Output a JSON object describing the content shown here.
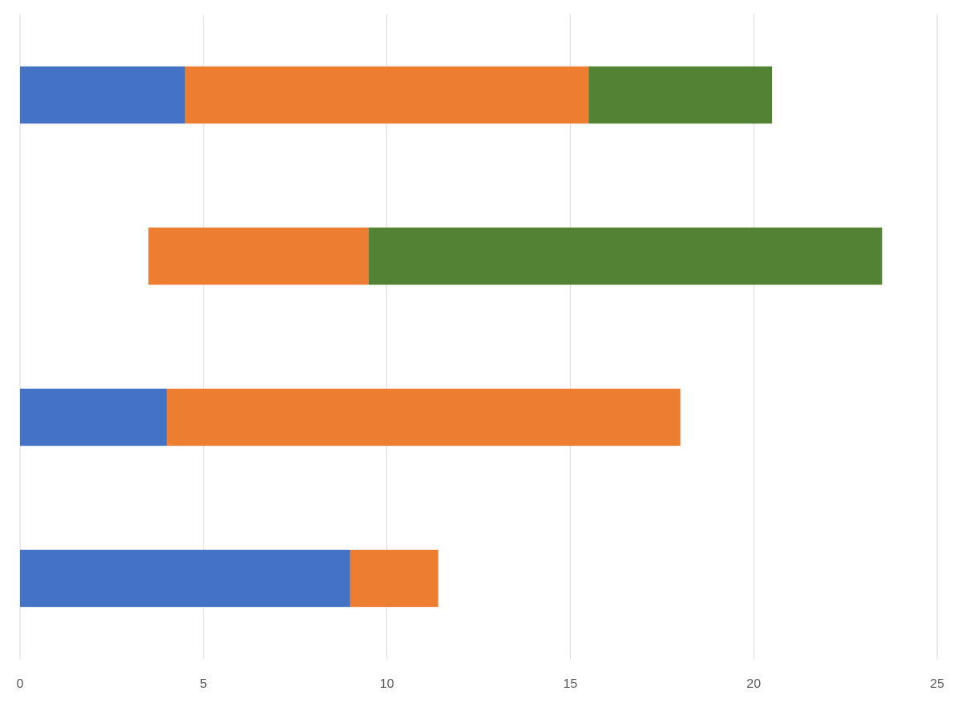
{
  "chart_data": {
    "type": "bar",
    "orientation": "horizontal",
    "stacked": true,
    "title": "",
    "xlabel": "",
    "ylabel": "",
    "xlim": [
      0,
      25
    ],
    "x_ticks": [
      "0",
      "5",
      "10",
      "15",
      "20",
      "25"
    ],
    "grid": "vertical",
    "legend": "none",
    "categories": [
      "",
      "",
      "",
      ""
    ],
    "series": [
      {
        "color": "#4472C4",
        "values": [
          4.5,
          0,
          4,
          9
        ]
      },
      {
        "color": "#ED7D31",
        "values": [
          11,
          6,
          14,
          2.4
        ]
      },
      {
        "color": "#548235",
        "values": [
          5,
          14,
          0,
          0
        ]
      }
    ],
    "offsets": [
      0,
      3.5,
      0,
      0
    ]
  }
}
